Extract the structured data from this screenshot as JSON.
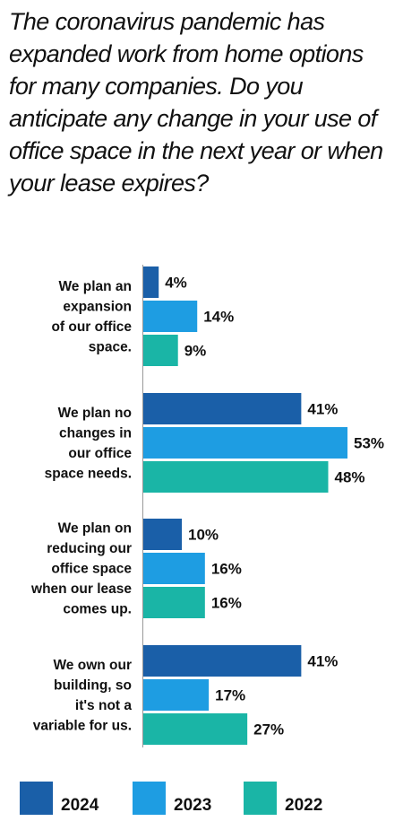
{
  "chart_data": {
    "type": "bar",
    "orientation": "horizontal",
    "title": "The coronavirus pandemic has expanded work from home options for many companies. Do you anticipate any change in your use of office space in the next year or when your lease expires?",
    "categories": [
      [
        "We plan an",
        "expansion",
        "of our office",
        "space."
      ],
      [
        "We plan no",
        "changes in",
        "our office",
        "space needs."
      ],
      [
        "We plan on",
        "reducing our",
        "office space",
        "when our lease",
        "comes up."
      ],
      [
        "We own our",
        "building, so",
        "it's not a",
        "variable for us."
      ]
    ],
    "series": [
      {
        "name": "2024",
        "color": "#1a5fa8",
        "values": [
          4,
          41,
          10,
          41
        ],
        "labels": [
          "4%",
          "41%",
          "10%",
          "41%"
        ]
      },
      {
        "name": "2023",
        "color": "#1e9de2",
        "values": [
          14,
          53,
          16,
          17
        ],
        "labels": [
          "14%",
          "53%",
          "16%",
          "17%"
        ]
      },
      {
        "name": "2022",
        "color": "#1ab5a6",
        "values": [
          9,
          48,
          16,
          27
        ],
        "labels": [
          "9%",
          "48%",
          "16%",
          "27%"
        ]
      }
    ],
    "value_unit": "%",
    "xlim": [
      0,
      53
    ],
    "grid": false,
    "legend": "bottom"
  }
}
